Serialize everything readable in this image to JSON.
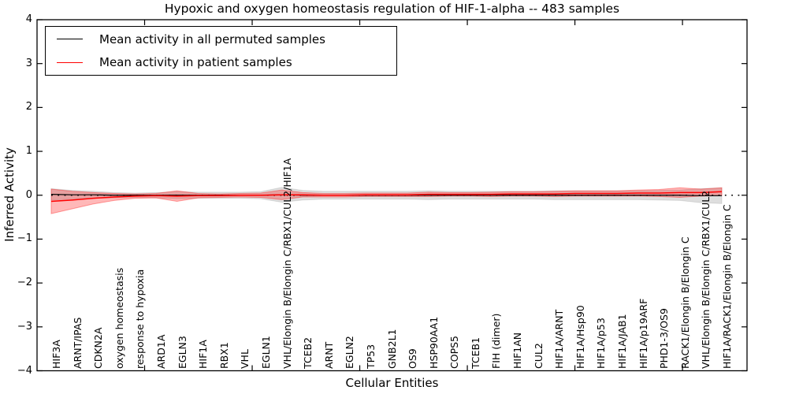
{
  "title": "Hypoxic and oxygen homeostasis regulation of HIF-1-alpha -- 483 samples",
  "chart_data": {
    "type": "line",
    "title": "Hypoxic and oxygen homeostasis regulation of HIF-1-alpha -- 483 samples",
    "xlabel": "Cellular Entities",
    "ylabel": "Inferred Activity",
    "ylim": [
      -4,
      4
    ],
    "yticks": [
      4,
      3,
      2,
      1,
      0,
      -1,
      -2,
      -3,
      -4
    ],
    "secondary_x_tick_positions": [
      5,
      10,
      15,
      20,
      25,
      30
    ],
    "grid": false,
    "legend_position": "upper left",
    "baseline": {
      "value": 0,
      "style": "dotted",
      "color": "#000000"
    },
    "categories": [
      "HIF3A",
      "ARNT/IPAS",
      "CDKN2A",
      "oxygen homeostasis",
      "response to hypoxia",
      "ARD1A",
      "EGLN3",
      "HIF1A",
      "RBX1",
      "VHL",
      "EGLN1",
      "VHL/Elongin B/Elongin C/RBX1/CUL2/HIF1A",
      "TCEB2",
      "ARNT",
      "EGLN2",
      "TP53",
      "GNB2L1",
      "OS9",
      "HSP90AA1",
      "COPS5",
      "TCEB1",
      "FIH (dimer)",
      "HIF1AN",
      "CUL2",
      "HIF1A/ARNT",
      "HIF1A/Hsp90",
      "HIF1A/p53",
      "HIF1A/JAB1",
      "HIF1A/p19ARF",
      "PHD1-3/OS9",
      "RACK1/Elongin B/Elongin C",
      "VHL/Elongin B/Elongin C/RBX1/CUL2",
      "HIF1A/RACK1/Elongin B/Elongin C"
    ],
    "series": [
      {
        "name": "Mean activity in all permuted samples",
        "color": "#000000",
        "line_width": 1.2,
        "band_fill": "rgba(0,0,0,0.13)",
        "band_edge": "rgba(0,0,0,0.10)",
        "values": [
          0.02,
          0.01,
          0.01,
          0.0,
          0.0,
          0.0,
          0.0,
          0.0,
          0.0,
          0.0,
          0.0,
          0.01,
          0.0,
          0.0,
          0.0,
          0.0,
          0.0,
          0.0,
          0.0,
          0.0,
          0.0,
          0.0,
          0.0,
          0.0,
          0.0,
          0.0,
          0.0,
          0.0,
          0.0,
          0.0,
          0.0,
          -0.01,
          -0.01
        ],
        "band_halfwidth": [
          0.13,
          0.1,
          0.08,
          0.06,
          0.05,
          0.06,
          0.08,
          0.07,
          0.07,
          0.07,
          0.08,
          0.17,
          0.11,
          0.09,
          0.09,
          0.09,
          0.09,
          0.09,
          0.1,
          0.09,
          0.09,
          0.09,
          0.09,
          0.09,
          0.1,
          0.1,
          0.1,
          0.1,
          0.1,
          0.11,
          0.12,
          0.16,
          0.18
        ]
      },
      {
        "name": "Mean activity in patient samples",
        "color": "#ff0000",
        "line_width": 1.5,
        "band_fill": "rgba(255,0,0,0.28)",
        "band_edge": "rgba(255,0,0,0.35)",
        "values": [
          -0.14,
          -0.11,
          -0.07,
          -0.04,
          -0.02,
          -0.01,
          -0.02,
          -0.01,
          -0.01,
          0.0,
          0.0,
          0.01,
          0.01,
          0.0,
          0.0,
          0.01,
          0.01,
          0.01,
          0.02,
          0.02,
          0.02,
          0.02,
          0.03,
          0.03,
          0.03,
          0.04,
          0.04,
          0.04,
          0.05,
          0.05,
          0.06,
          0.06,
          0.08
        ],
        "band_halfwidth": [
          0.28,
          0.2,
          0.13,
          0.08,
          0.05,
          0.05,
          0.12,
          0.05,
          0.04,
          0.04,
          0.05,
          0.11,
          0.05,
          0.04,
          0.04,
          0.04,
          0.04,
          0.04,
          0.05,
          0.04,
          0.04,
          0.05,
          0.05,
          0.05,
          0.06,
          0.06,
          0.06,
          0.06,
          0.07,
          0.08,
          0.11,
          0.08,
          0.09
        ]
      }
    ]
  }
}
